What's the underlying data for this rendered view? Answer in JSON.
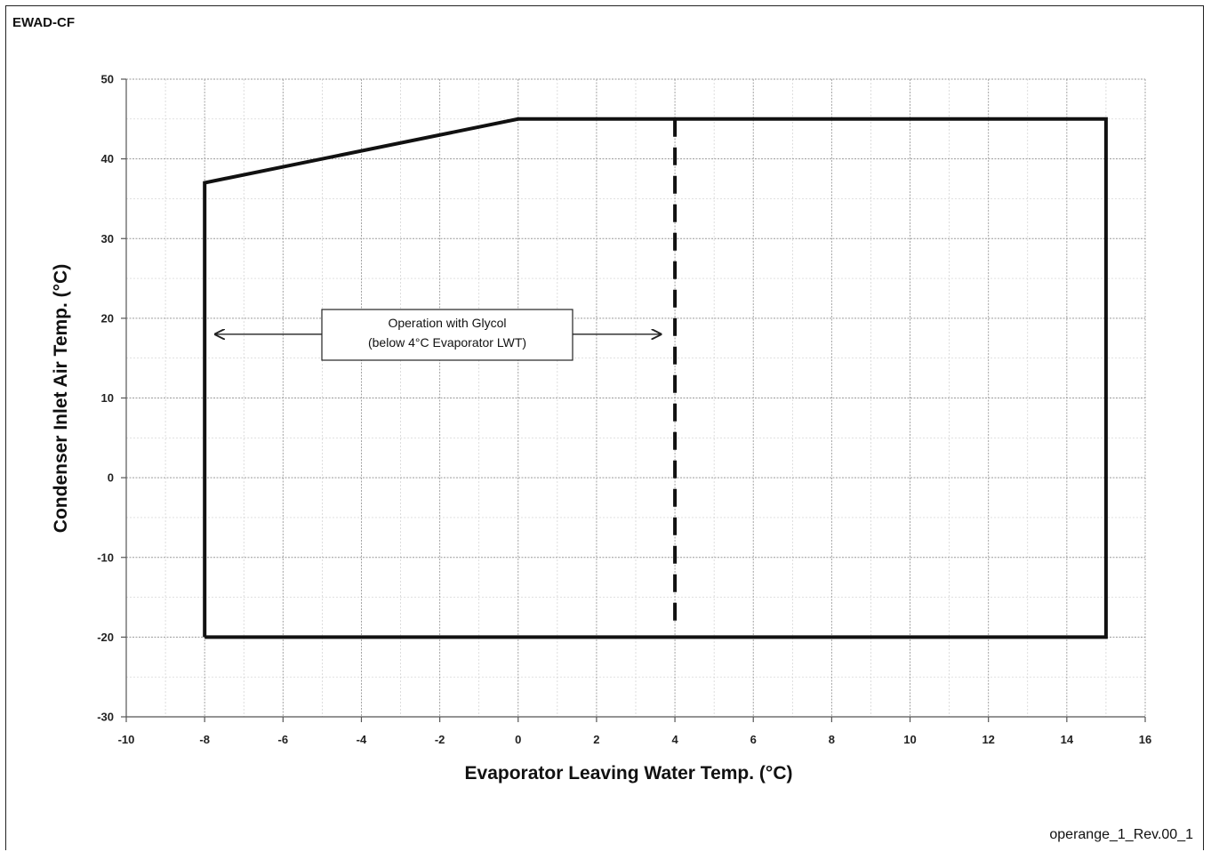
{
  "header": {
    "title": "EWAD-CF"
  },
  "footer": {
    "reference": "operange_1_Rev.00_1"
  },
  "chart_data": {
    "type": "line",
    "title": "EWAD-CF",
    "xlabel": "Evaporator Leaving Water Temp. (°C)",
    "ylabel": "Condenser Inlet Air Temp. (°C)",
    "xlim": [
      -10,
      16
    ],
    "ylim": [
      -30,
      50
    ],
    "xticks": [
      -10,
      -8,
      -6,
      -4,
      -2,
      0,
      2,
      4,
      6,
      8,
      10,
      12,
      14,
      16
    ],
    "yticks": [
      -30,
      -20,
      -10,
      0,
      10,
      20,
      30,
      40,
      50
    ],
    "grid": true,
    "series": [
      {
        "style": "solid",
        "x": [
          -8,
          -8,
          0,
          15,
          15,
          -8
        ],
        "y": [
          -20,
          37,
          45,
          45,
          -20,
          -20
        ]
      },
      {
        "style": "dashed",
        "x": [
          4,
          4
        ],
        "y": [
          45,
          -18
        ]
      }
    ],
    "annotations": [
      {
        "line1": "Operation with Glycol",
        "line2": "(below 4°C Evaporator LWT)",
        "arrow_from": [
          -8,
          18
        ],
        "arrow_to": [
          4,
          18
        ]
      }
    ]
  }
}
